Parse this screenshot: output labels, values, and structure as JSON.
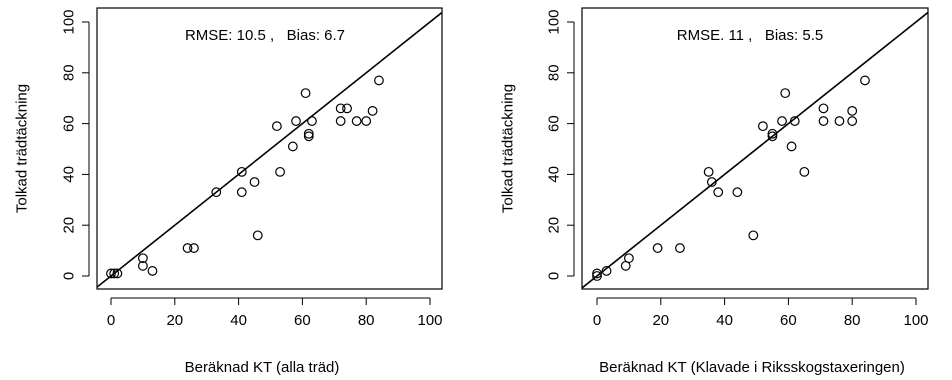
{
  "chart_data": [
    {
      "type": "scatter",
      "title": "",
      "annotation": "RMSE: 10.5 ,   Bias: 6.7",
      "xlabel": "Beräknad KT (alla träd)",
      "ylabel": "Tolkad trädtäckning",
      "xlim": [
        0,
        100
      ],
      "ylim": [
        0,
        100
      ],
      "xticks": [
        0,
        20,
        40,
        60,
        80,
        100
      ],
      "yticks": [
        0,
        20,
        40,
        60,
        80,
        100
      ],
      "grid": false,
      "reference_line": "1:1",
      "points": [
        [
          0,
          1
        ],
        [
          1,
          1
        ],
        [
          2,
          1
        ],
        [
          10,
          7
        ],
        [
          10,
          4
        ],
        [
          13,
          2
        ],
        [
          24,
          11
        ],
        [
          26,
          11
        ],
        [
          33,
          33
        ],
        [
          41,
          41
        ],
        [
          41,
          33
        ],
        [
          45,
          37
        ],
        [
          46,
          16
        ],
        [
          52,
          59
        ],
        [
          53,
          41
        ],
        [
          57,
          51
        ],
        [
          58,
          61
        ],
        [
          61,
          72
        ],
        [
          62,
          56
        ],
        [
          62,
          55
        ],
        [
          63,
          61
        ],
        [
          72,
          66
        ],
        [
          72,
          61
        ],
        [
          74,
          66
        ],
        [
          77,
          61
        ],
        [
          80,
          61
        ],
        [
          82,
          65
        ],
        [
          84,
          77
        ]
      ]
    },
    {
      "type": "scatter",
      "title": "",
      "annotation": "RMSE. 11 ,   Bias: 5.5",
      "xlabel": "Beräknad KT (Klavade i Riksskogstaxeringen)",
      "ylabel": "Tolkad trädtäckning",
      "xlim": [
        0,
        100
      ],
      "ylim": [
        0,
        100
      ],
      "xticks": [
        0,
        20,
        40,
        60,
        80,
        100
      ],
      "yticks": [
        0,
        20,
        40,
        60,
        80,
        100
      ],
      "grid": false,
      "reference_line": "1:1",
      "points": [
        [
          0,
          1
        ],
        [
          0,
          0
        ],
        [
          3,
          2
        ],
        [
          9,
          4
        ],
        [
          10,
          7
        ],
        [
          19,
          11
        ],
        [
          26,
          11
        ],
        [
          35,
          41
        ],
        [
          36,
          37
        ],
        [
          38,
          33
        ],
        [
          44,
          33
        ],
        [
          49,
          16
        ],
        [
          52,
          59
        ],
        [
          55,
          56
        ],
        [
          55,
          55
        ],
        [
          58,
          61
        ],
        [
          59,
          72
        ],
        [
          61,
          51
        ],
        [
          62,
          61
        ],
        [
          65,
          41
        ],
        [
          71,
          66
        ],
        [
          71,
          61
        ],
        [
          76,
          61
        ],
        [
          80,
          61
        ],
        [
          80,
          65
        ],
        [
          84,
          77
        ]
      ]
    }
  ]
}
